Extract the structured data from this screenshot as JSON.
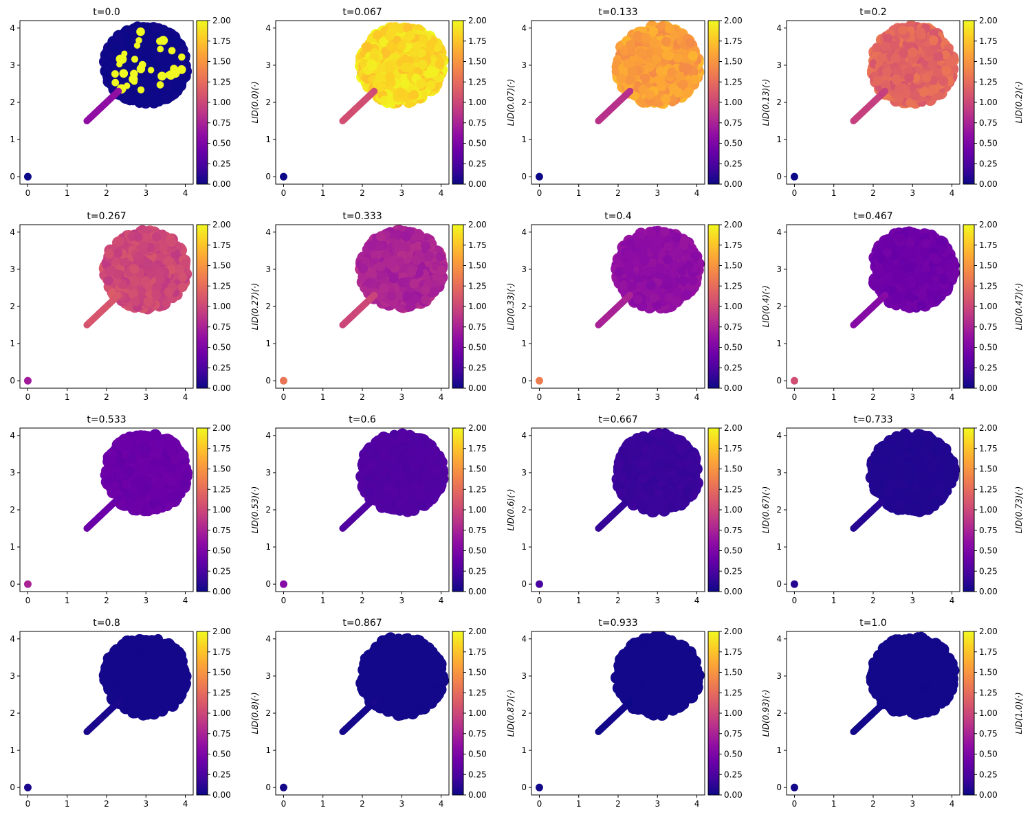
{
  "figure": {
    "layout": {
      "rows": 4,
      "cols": 4
    },
    "colormap": "plasma",
    "colorbar_ticks": [
      "0.00",
      "0.25",
      "0.50",
      "0.75",
      "1.00",
      "1.25",
      "1.50",
      "1.75",
      "2.00"
    ]
  },
  "chart_data": [
    {
      "type": "scatter",
      "title": "t=0.0",
      "cbar_label": "",
      "disk_level": 0.0,
      "disk_variation": 0.02,
      "stick_level": 0.6,
      "origin_level": 0.0,
      "speckles": true,
      "xlim": [
        -0.2,
        4.2
      ],
      "ylim": [
        -0.2,
        4.2
      ],
      "xticks": [
        "0",
        "1",
        "2",
        "3",
        "4"
      ],
      "yticks": [
        "0",
        "1",
        "2",
        "3",
        "4"
      ],
      "clim": [
        0,
        2
      ]
    },
    {
      "type": "scatter",
      "title": "t=0.067",
      "cbar_label": "LID(0.0)(·)",
      "disk_level": 1.85,
      "disk_variation": 0.12,
      "stick_level": 1.05,
      "origin_level": 0.0,
      "speckles": false,
      "xlim": [
        -0.2,
        4.2
      ],
      "ylim": [
        -0.2,
        4.2
      ],
      "xticks": [
        "0",
        "1",
        "2",
        "3",
        "4"
      ],
      "yticks": [
        "0",
        "1",
        "2",
        "3",
        "4"
      ],
      "clim": [
        0,
        2
      ]
    },
    {
      "type": "scatter",
      "title": "t=0.133",
      "cbar_label": "LID(0.07)(·)",
      "disk_level": 1.55,
      "disk_variation": 0.12,
      "stick_level": 0.85,
      "origin_level": 0.0,
      "speckles": false,
      "xlim": [
        -0.2,
        4.2
      ],
      "ylim": [
        -0.2,
        4.2
      ],
      "xticks": [
        "0",
        "1",
        "2",
        "3",
        "4"
      ],
      "yticks": [
        "0",
        "1",
        "2",
        "3",
        "4"
      ],
      "clim": [
        0,
        2
      ]
    },
    {
      "type": "scatter",
      "title": "t=0.2",
      "cbar_label": "LID(0.13)(·)",
      "disk_level": 1.2,
      "disk_variation": 0.12,
      "stick_level": 0.95,
      "origin_level": 0.0,
      "speckles": false,
      "xlim": [
        -0.2,
        4.2
      ],
      "ylim": [
        -0.2,
        4.2
      ],
      "xticks": [
        "0",
        "1",
        "2",
        "3",
        "4"
      ],
      "yticks": [
        "0",
        "1",
        "2",
        "3",
        "4"
      ],
      "clim": [
        0,
        2
      ]
    },
    {
      "type": "scatter",
      "title": "t=0.267",
      "cbar_label": "LID(0.2)(·)",
      "disk_level": 1.0,
      "disk_variation": 0.1,
      "stick_level": 1.1,
      "origin_level": 0.7,
      "speckles": false,
      "xlim": [
        -0.2,
        4.2
      ],
      "ylim": [
        -0.2,
        4.2
      ],
      "xticks": [
        "0",
        "1",
        "2",
        "3",
        "4"
      ],
      "yticks": [
        "0",
        "1",
        "2",
        "3",
        "4"
      ],
      "clim": [
        0,
        2
      ]
    },
    {
      "type": "scatter",
      "title": "t=0.333",
      "cbar_label": "LID(0.27)(·)",
      "disk_level": 0.75,
      "disk_variation": 0.08,
      "stick_level": 1.0,
      "origin_level": 1.3,
      "speckles": false,
      "xlim": [
        -0.2,
        4.2
      ],
      "ylim": [
        -0.2,
        4.2
      ],
      "xticks": [
        "0",
        "1",
        "2",
        "3",
        "4"
      ],
      "yticks": [
        "0",
        "1",
        "2",
        "3",
        "4"
      ],
      "clim": [
        0,
        2
      ]
    },
    {
      "type": "scatter",
      "title": "t=0.4",
      "cbar_label": "LID(0.33)(·)",
      "disk_level": 0.6,
      "disk_variation": 0.05,
      "stick_level": 0.75,
      "origin_level": 1.35,
      "speckles": false,
      "xlim": [
        -0.2,
        4.2
      ],
      "ylim": [
        -0.2,
        4.2
      ],
      "xticks": [
        "0",
        "1",
        "2",
        "3",
        "4"
      ],
      "yticks": [
        "0",
        "1",
        "2",
        "3",
        "4"
      ],
      "clim": [
        0,
        2
      ]
    },
    {
      "type": "scatter",
      "title": "t=0.467",
      "cbar_label": "LID(0.4)(·)",
      "disk_level": 0.42,
      "disk_variation": 0.04,
      "stick_level": 0.55,
      "origin_level": 1.05,
      "speckles": false,
      "xlim": [
        -0.2,
        4.2
      ],
      "ylim": [
        -0.2,
        4.2
      ],
      "xticks": [
        "0",
        "1",
        "2",
        "3",
        "4"
      ],
      "yticks": [
        "0",
        "1",
        "2",
        "3",
        "4"
      ],
      "clim": [
        0,
        2
      ]
    },
    {
      "type": "scatter",
      "title": "t=0.533",
      "cbar_label": "LID(0.47)(·)",
      "disk_level": 0.4,
      "disk_variation": 0.03,
      "stick_level": 0.4,
      "origin_level": 0.75,
      "speckles": false,
      "xlim": [
        -0.2,
        4.2
      ],
      "ylim": [
        -0.2,
        4.2
      ],
      "xticks": [
        "0",
        "1",
        "2",
        "3",
        "4"
      ],
      "yticks": [
        "0",
        "1",
        "2",
        "3",
        "4"
      ],
      "clim": [
        0,
        2
      ]
    },
    {
      "type": "scatter",
      "title": "t=0.6",
      "cbar_label": "LID(0.53)(·)",
      "disk_level": 0.28,
      "disk_variation": 0.02,
      "stick_level": 0.28,
      "origin_level": 0.55,
      "speckles": false,
      "xlim": [
        -0.2,
        4.2
      ],
      "ylim": [
        -0.2,
        4.2
      ],
      "xticks": [
        "0",
        "1",
        "2",
        "3",
        "4"
      ],
      "yticks": [
        "0",
        "1",
        "2",
        "3",
        "4"
      ],
      "clim": [
        0,
        2
      ]
    },
    {
      "type": "scatter",
      "title": "t=0.667",
      "cbar_label": "LID(0.6)(·)",
      "disk_level": 0.17,
      "disk_variation": 0.02,
      "stick_level": 0.15,
      "origin_level": 0.25,
      "speckles": false,
      "xlim": [
        -0.2,
        4.2
      ],
      "ylim": [
        -0.2,
        4.2
      ],
      "xticks": [
        "0",
        "1",
        "2",
        "3",
        "4"
      ],
      "yticks": [
        "0",
        "1",
        "2",
        "3",
        "4"
      ],
      "clim": [
        0,
        2
      ]
    },
    {
      "type": "scatter",
      "title": "t=0.733",
      "cbar_label": "LID(0.67)(·)",
      "disk_level": 0.08,
      "disk_variation": 0.01,
      "stick_level": 0.1,
      "origin_level": 0.1,
      "speckles": false,
      "xlim": [
        -0.2,
        4.2
      ],
      "ylim": [
        -0.2,
        4.2
      ],
      "xticks": [
        "0",
        "1",
        "2",
        "3",
        "4"
      ],
      "yticks": [
        "0",
        "1",
        "2",
        "3",
        "4"
      ],
      "clim": [
        0,
        2
      ]
    },
    {
      "type": "scatter",
      "title": "t=0.8",
      "cbar_label": "LID(0.73)(·)",
      "disk_level": 0.03,
      "disk_variation": 0.0,
      "stick_level": 0.05,
      "origin_level": 0.05,
      "speckles": false,
      "xlim": [
        -0.2,
        4.2
      ],
      "ylim": [
        -0.2,
        4.2
      ],
      "xticks": [
        "0",
        "1",
        "2",
        "3",
        "4"
      ],
      "yticks": [
        "0",
        "1",
        "2",
        "3",
        "4"
      ],
      "clim": [
        0,
        2
      ]
    },
    {
      "type": "scatter",
      "title": "t=0.867",
      "cbar_label": "LID(0.8)(·)",
      "disk_level": 0.02,
      "disk_variation": 0.0,
      "stick_level": 0.03,
      "origin_level": 0.03,
      "speckles": false,
      "xlim": [
        -0.2,
        4.2
      ],
      "ylim": [
        -0.2,
        4.2
      ],
      "xticks": [
        "0",
        "1",
        "2",
        "3",
        "4"
      ],
      "yticks": [
        "0",
        "1",
        "2",
        "3",
        "4"
      ],
      "clim": [
        0,
        2
      ]
    },
    {
      "type": "scatter",
      "title": "t=0.933",
      "cbar_label": "LID(0.87)(·)",
      "disk_level": 0.02,
      "disk_variation": 0.0,
      "stick_level": 0.02,
      "origin_level": 0.02,
      "speckles": false,
      "xlim": [
        -0.2,
        4.2
      ],
      "ylim": [
        -0.2,
        4.2
      ],
      "xticks": [
        "0",
        "1",
        "2",
        "3",
        "4"
      ],
      "yticks": [
        "0",
        "1",
        "2",
        "3",
        "4"
      ],
      "clim": [
        0,
        2
      ]
    },
    {
      "type": "scatter",
      "title": "t=1.0",
      "cbar_label": "LID(0.93)(·)",
      "disk_level": 0.02,
      "disk_variation": 0.0,
      "stick_level": 0.02,
      "origin_level": 0.02,
      "speckles": false,
      "xlim": [
        -0.2,
        4.2
      ],
      "ylim": [
        -0.2,
        4.2
      ],
      "xticks": [
        "0",
        "1",
        "2",
        "3",
        "4"
      ],
      "yticks": [
        "0",
        "1",
        "2",
        "3",
        "4"
      ],
      "clim": [
        0,
        2
      ]
    }
  ],
  "trailing_cbar_label": "LID(1.0)(·)"
}
